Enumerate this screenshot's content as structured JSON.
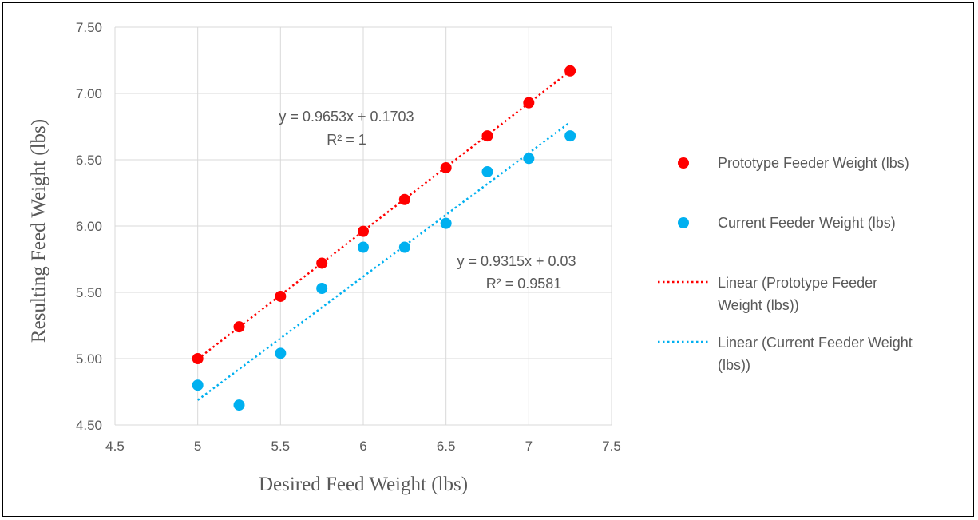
{
  "chart_data": {
    "type": "scatter",
    "xlabel": "Desired Feed Weight (lbs)",
    "ylabel": "Resulting Feed Weight (lbs)",
    "xlim": [
      4.5,
      7.5
    ],
    "ylim": [
      4.5,
      7.5
    ],
    "x_ticks": [
      "4.5",
      "5",
      "5.5",
      "6",
      "6.5",
      "7",
      "7.5"
    ],
    "y_ticks": [
      "4.50",
      "5.00",
      "5.50",
      "6.00",
      "6.50",
      "7.00",
      "7.50"
    ],
    "grid": true,
    "legend_position": "right",
    "x": [
      5,
      5.25,
      5.5,
      5.75,
      6,
      6.25,
      6.5,
      6.75,
      7,
      7.25
    ],
    "series": [
      {
        "name": "Prototype Feeder Weight (lbs)",
        "color": "#ff0000",
        "values": [
          5.0,
          5.24,
          5.47,
          5.72,
          5.96,
          6.2,
          6.44,
          6.68,
          6.93,
          7.17
        ]
      },
      {
        "name": "Current Feeder Weight (lbs)",
        "color": "#00b0f0",
        "values": [
          4.8,
          4.65,
          5.04,
          5.53,
          5.84,
          5.84,
          6.02,
          6.41,
          6.51,
          6.68
        ]
      }
    ],
    "trendlines": [
      {
        "name": "Linear (Prototype Feeder Weight (lbs))",
        "legend_lines": [
          "Linear (Prototype Feeder",
          "Weight (lbs))"
        ],
        "color": "#ff0000",
        "slope": 0.9653,
        "intercept": 0.1703,
        "x_range": [
          5,
          7.25
        ],
        "equation": "y = 0.9653x + 0.1703",
        "r_squared": "R² = 1"
      },
      {
        "name": "Linear (Current Feeder Weight (lbs))",
        "legend_lines": [
          "Linear (Current Feeder Weight",
          "(lbs))"
        ],
        "color": "#00b0f0",
        "slope": 0.9315,
        "intercept": 0.03,
        "x_range": [
          5,
          7.25
        ],
        "equation": "y = 0.9315x + 0.03",
        "r_squared": "R² = 0.9581"
      }
    ]
  }
}
